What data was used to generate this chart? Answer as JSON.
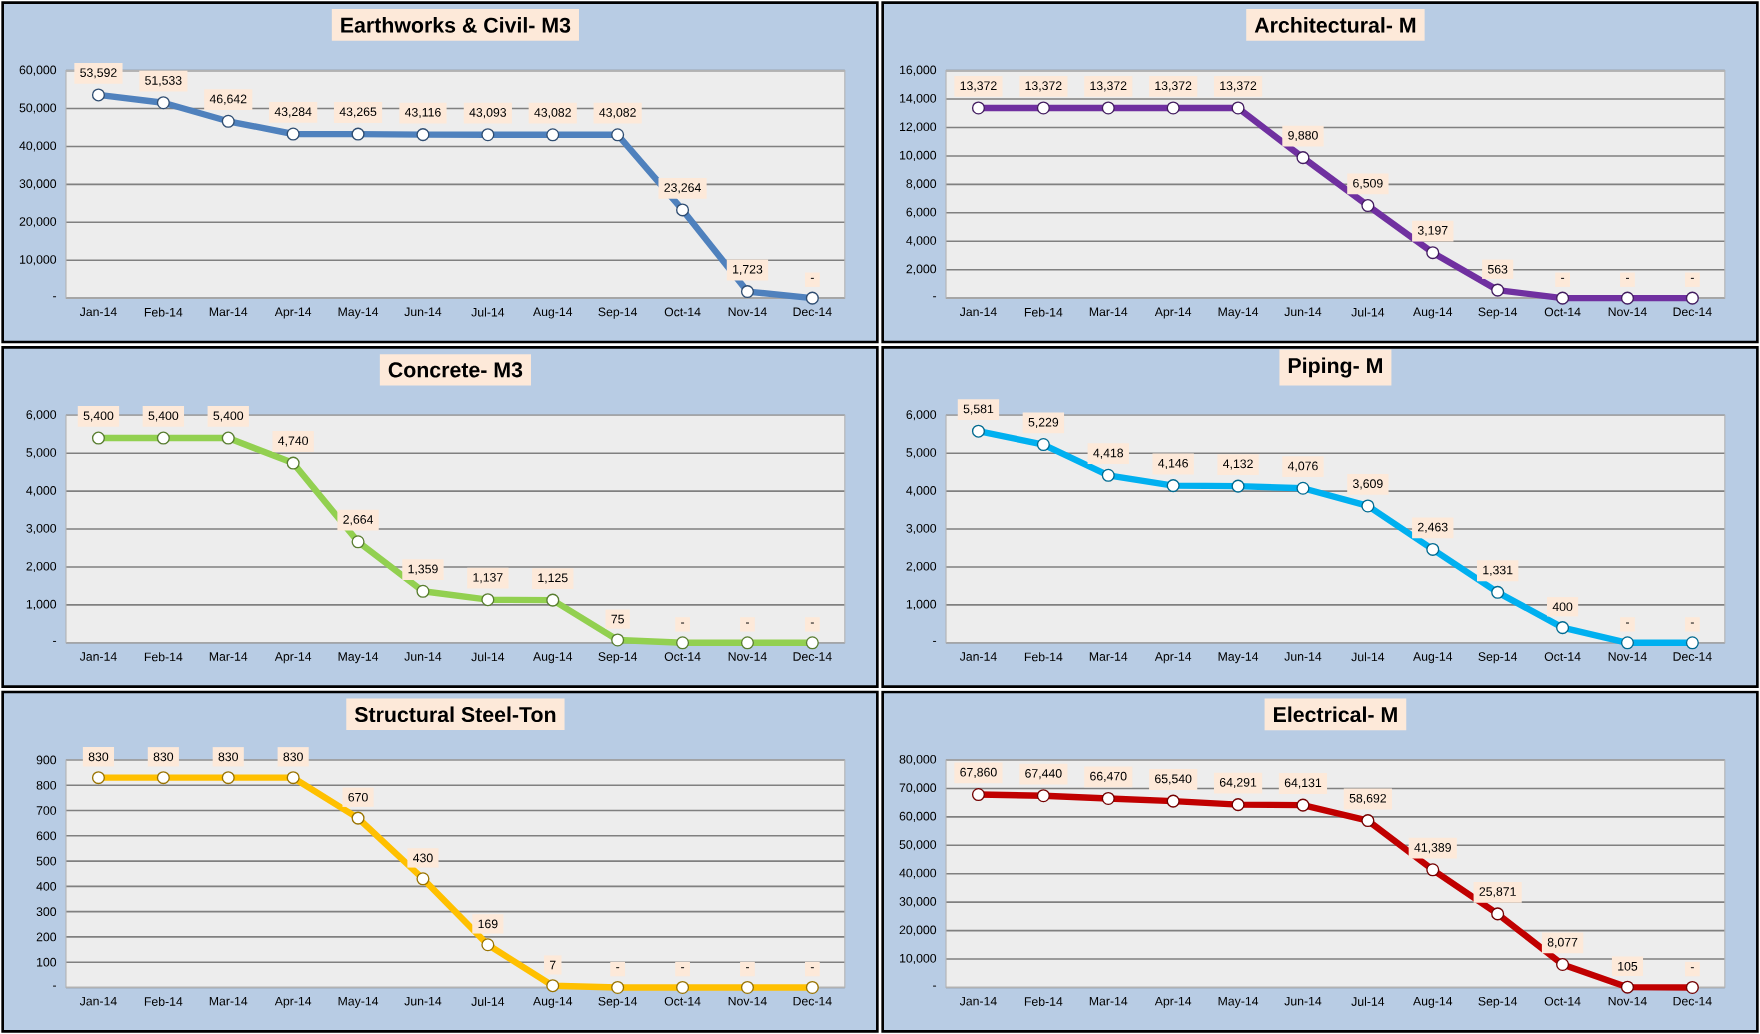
{
  "chart_data": [
    {
      "type": "line",
      "title": "Earthworks & Civil- M3",
      "categories": [
        "Jan-14",
        "Feb-14",
        "Mar-14",
        "Apr-14",
        "May-14",
        "Jun-14",
        "Jul-14",
        "Aug-14",
        "Sep-14",
        "Oct-14",
        "Nov-14",
        "Dec-14"
      ],
      "values": [
        53592,
        51533,
        46642,
        43284,
        43265,
        43116,
        43093,
        43082,
        43082,
        23264,
        1723,
        0
      ],
      "value_labels": [
        "53,592",
        "51,533",
        "46,642",
        "43,284",
        "43,265",
        "43,116",
        "43,093",
        "43,082",
        "43,082",
        "23,264",
        "1,723",
        "-"
      ],
      "color": "#4f81bd",
      "ylim": [
        0,
        60000
      ],
      "yticks": [
        {
          "value": 0,
          "label": "-"
        },
        {
          "value": 10000,
          "label": "10,000"
        },
        {
          "value": 20000,
          "label": "20,000"
        },
        {
          "value": 30000,
          "label": "30,000"
        },
        {
          "value": 40000,
          "label": "40,000"
        },
        {
          "value": 50000,
          "label": "50,000"
        },
        {
          "value": 60000,
          "label": "60,000"
        }
      ],
      "grid": "y",
      "marker": "circle"
    },
    {
      "type": "line",
      "title": "Architectural- M",
      "categories": [
        "Jan-14",
        "Feb-14",
        "Mar-14",
        "Apr-14",
        "May-14",
        "Jun-14",
        "Jul-14",
        "Aug-14",
        "Sep-14",
        "Oct-14",
        "Nov-14",
        "Dec-14"
      ],
      "values": [
        13372,
        13372,
        13372,
        13372,
        13372,
        9880,
        6509,
        3197,
        563,
        0,
        0,
        0
      ],
      "value_labels": [
        "13,372",
        "13,372",
        "13,372",
        "13,372",
        "13,372",
        "9,880",
        "6,509",
        "3,197",
        "563",
        "-",
        "-",
        "-"
      ],
      "color": "#7030a0",
      "ylim": [
        0,
        16000
      ],
      "yticks": [
        {
          "value": 0,
          "label": "-"
        },
        {
          "value": 2000,
          "label": "2,000"
        },
        {
          "value": 4000,
          "label": "4,000"
        },
        {
          "value": 6000,
          "label": "6,000"
        },
        {
          "value": 8000,
          "label": "8,000"
        },
        {
          "value": 10000,
          "label": "10,000"
        },
        {
          "value": 12000,
          "label": "12,000"
        },
        {
          "value": 14000,
          "label": "14,000"
        },
        {
          "value": 16000,
          "label": "16,000"
        }
      ],
      "grid": "y",
      "marker": "circle"
    },
    {
      "type": "line",
      "title": "Concrete- M3",
      "categories": [
        "Jan-14",
        "Feb-14",
        "Mar-14",
        "Apr-14",
        "May-14",
        "Jun-14",
        "Jul-14",
        "Aug-14",
        "Sep-14",
        "Oct-14",
        "Nov-14",
        "Dec-14"
      ],
      "values": [
        5400,
        5400,
        5400,
        4740,
        2664,
        1359,
        1137,
        1125,
        75,
        0,
        0,
        0
      ],
      "value_labels": [
        "5,400",
        "5,400",
        "5,400",
        "4,740",
        "2,664",
        "1,359",
        "1,137",
        "1,125",
        "75",
        "-",
        "-",
        "-"
      ],
      "color": "#92d050",
      "ylim": [
        0,
        6000
      ],
      "yticks": [
        {
          "value": 0,
          "label": "-"
        },
        {
          "value": 1000,
          "label": "1,000"
        },
        {
          "value": 2000,
          "label": "2,000"
        },
        {
          "value": 3000,
          "label": "3,000"
        },
        {
          "value": 4000,
          "label": "4,000"
        },
        {
          "value": 5000,
          "label": "5,000"
        },
        {
          "value": 6000,
          "label": "6,000"
        }
      ],
      "grid": "y",
      "marker": "circle"
    },
    {
      "type": "line",
      "title": "Piping- M",
      "categories": [
        "Jan-14",
        "Feb-14",
        "Mar-14",
        "Apr-14",
        "May-14",
        "Jun-14",
        "Jul-14",
        "Aug-14",
        "Sep-14",
        "Oct-14",
        "Nov-14",
        "Dec-14"
      ],
      "values": [
        5581,
        5229,
        4418,
        4146,
        4132,
        4076,
        3609,
        2463,
        1331,
        400,
        0,
        0
      ],
      "value_labels": [
        "5,581",
        "5,229",
        "4,418",
        "4,146",
        "4,132",
        "4,076",
        "3,609",
        "2,463",
        "1,331",
        "400",
        "-",
        "-"
      ],
      "color": "#00b0f0",
      "ylim": [
        0,
        6000
      ],
      "yticks": [
        {
          "value": 0,
          "label": "-"
        },
        {
          "value": 1000,
          "label": "1,000"
        },
        {
          "value": 2000,
          "label": "2,000"
        },
        {
          "value": 3000,
          "label": "3,000"
        },
        {
          "value": 4000,
          "label": "4,000"
        },
        {
          "value": 5000,
          "label": "5,000"
        },
        {
          "value": 6000,
          "label": "6,000"
        }
      ],
      "grid": "y",
      "marker": "circle"
    },
    {
      "type": "line",
      "title": "Structural Steel-Ton",
      "categories": [
        "Jan-14",
        "Feb-14",
        "Mar-14",
        "Apr-14",
        "May-14",
        "Jun-14",
        "Jul-14",
        "Aug-14",
        "Sep-14",
        "Oct-14",
        "Nov-14",
        "Dec-14"
      ],
      "values": [
        830,
        830,
        830,
        830,
        670,
        430,
        169,
        7,
        0,
        0,
        0,
        0
      ],
      "value_labels": [
        "830",
        "830",
        "830",
        "830",
        "670",
        "430",
        "169",
        "7",
        "-",
        "-",
        "-",
        "-"
      ],
      "color": "#ffc000",
      "ylim": [
        0,
        900
      ],
      "yticks": [
        {
          "value": 0,
          "label": "-"
        },
        100,
        200,
        300,
        400,
        500,
        600,
        700,
        800,
        900
      ],
      "grid": "y",
      "marker": "circle"
    },
    {
      "type": "line",
      "title": "Electrical- M",
      "categories": [
        "Jan-14",
        "Feb-14",
        "Mar-14",
        "Apr-14",
        "May-14",
        "Jun-14",
        "Jul-14",
        "Aug-14",
        "Sep-14",
        "Oct-14",
        "Nov-14",
        "Dec-14"
      ],
      "values": [
        67860,
        67440,
        66470,
        65540,
        64291,
        64131,
        58692,
        41389,
        25871,
        8077,
        105,
        0
      ],
      "value_labels": [
        "67,860",
        "67,440",
        "66,470",
        "65,540",
        "64,291",
        "64,131",
        "58,692",
        "41,389",
        "25,871",
        "8,077",
        "105",
        "-"
      ],
      "color": "#c00000",
      "ylim": [
        0,
        80000
      ],
      "yticks": [
        {
          "value": 0,
          "label": "-"
        },
        {
          "value": 10000,
          "label": "10,000"
        },
        {
          "value": 20000,
          "label": "20,000"
        },
        {
          "value": 30000,
          "label": "30,000"
        },
        {
          "value": 40000,
          "label": "40,000"
        },
        {
          "value": 50000,
          "label": "50,000"
        },
        {
          "value": 60000,
          "label": "60,000"
        },
        {
          "value": 70000,
          "label": "70,000"
        },
        {
          "value": 80000,
          "label": "80,000"
        }
      ],
      "grid": "y",
      "marker": "circle"
    }
  ]
}
